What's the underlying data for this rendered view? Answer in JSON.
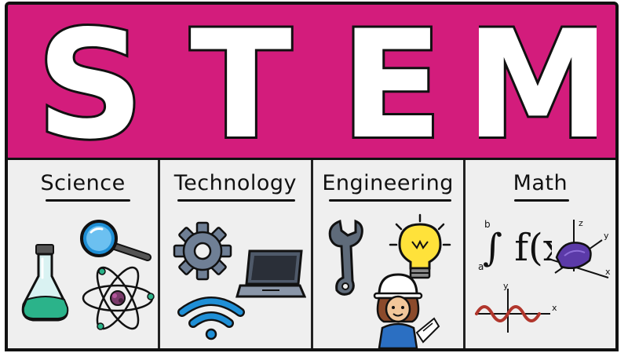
{
  "banner": {
    "letters": [
      "S",
      "T",
      "E",
      "M"
    ],
    "background_color": "#d31c7c",
    "letter_color": "#ffffff"
  },
  "panels": [
    {
      "title": "Science",
      "icons": [
        "flask-icon",
        "magnifying-glass-icon",
        "atom-icon"
      ]
    },
    {
      "title": "Technology",
      "icons": [
        "gear-icon",
        "laptop-icon",
        "wifi-icon"
      ]
    },
    {
      "title": "Engineering",
      "icons": [
        "wrench-icon",
        "light-bulb-icon",
        "engineer-icon"
      ]
    },
    {
      "title": "Math",
      "icons": [
        "integral-formula-icon",
        "3d-axes-icon",
        "sine-wave-icon"
      ]
    }
  ],
  "math": {
    "formula": "∫ f(x)dx",
    "lower": "a",
    "upper": "b",
    "axis_labels": [
      "z",
      "y",
      "x",
      "y",
      "x"
    ]
  }
}
